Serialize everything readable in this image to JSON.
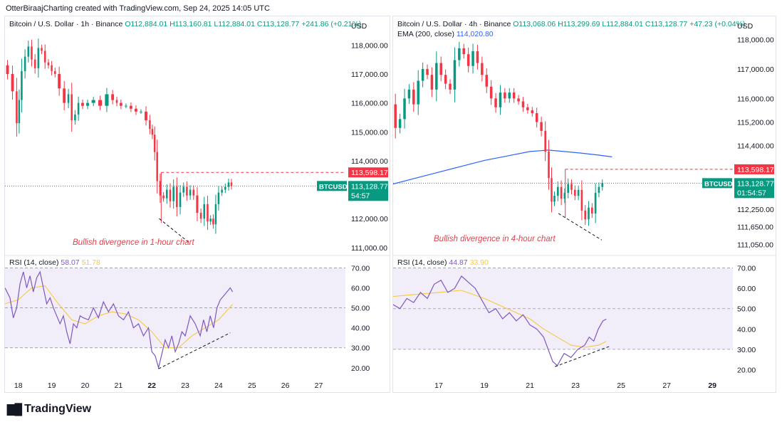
{
  "header": {
    "text": "OtterBiraajCharting created with TradingView.com, Sep 24, 2025 14:05 UTC"
  },
  "footer": {
    "logo_text": "TradingView"
  },
  "colors": {
    "up": "#089981",
    "down": "#f23645",
    "rsi": "#7e57c2",
    "rsi_ma": "#f7c744",
    "ema": "#2962ff",
    "rsi_band": "#7e57c2",
    "divergence": "#e0414e",
    "text": "#131722",
    "axis": "#131722"
  },
  "chart_data": [
    {
      "type": "candlestick",
      "title": "Bitcoin / U.S. Dollar · 1h · Binance",
      "ohlc_label": {
        "o": "O112,884.01",
        "h": "H113,160.81",
        "l": "L112,884.01",
        "c": "C113,128.77",
        "chg": "+241.86 (+0.21%)"
      },
      "currency": "USD",
      "ylim": [
        110750,
        118500
      ],
      "y_ticks": [
        111000,
        112000,
        113000,
        114000,
        115000,
        116000,
        117000,
        118000
      ],
      "y_tick_labels": [
        "111,000.00",
        "112,000.00",
        "113,000.00",
        "114,000.00",
        "115,000.00",
        "116,000.00",
        "117,000.00",
        "118,000.00"
      ],
      "x_ticks": [
        18,
        19,
        20,
        21,
        22,
        23,
        24,
        25,
        26,
        27
      ],
      "x_tick_labels": [
        "18",
        "19",
        "20",
        "21",
        "22",
        "23",
        "24",
        "25",
        "26",
        "27"
      ],
      "x_bold": "22",
      "xlim": [
        17.6,
        27.8
      ],
      "last_price_label": "113,128.77",
      "countdown": "54:57",
      "symbol_tag": "BTCUSD",
      "last_price": 113128.77,
      "resistance": {
        "value": 113598.17,
        "label": "113,598.17",
        "x_start": 22.28
      },
      "support_line": {
        "x1": 22.22,
        "y1": 112000,
        "x2": 23.14,
        "y2": 111150
      },
      "annotation": "Bullish divergence in 1-hour chart",
      "price_path": [
        [
          17.6,
          117300
        ],
        [
          17.75,
          117000
        ],
        [
          17.9,
          116400
        ],
        [
          18.0,
          115300
        ],
        [
          18.05,
          116100
        ],
        [
          18.15,
          117100
        ],
        [
          18.25,
          117600
        ],
        [
          18.35,
          117950
        ],
        [
          18.45,
          117500
        ],
        [
          18.55,
          117200
        ],
        [
          18.65,
          117900
        ],
        [
          18.75,
          117800
        ],
        [
          18.85,
          117400
        ],
        [
          18.95,
          117300
        ],
        [
          19.05,
          117100
        ],
        [
          19.15,
          117000
        ],
        [
          19.3,
          116500
        ],
        [
          19.45,
          116000
        ],
        [
          19.55,
          116300
        ],
        [
          19.65,
          115400
        ],
        [
          19.75,
          115600
        ],
        [
          19.85,
          116000
        ],
        [
          20.0,
          115900
        ],
        [
          20.15,
          116000
        ],
        [
          20.35,
          116100
        ],
        [
          20.55,
          115900
        ],
        [
          20.75,
          116300
        ],
        [
          20.9,
          116100
        ],
        [
          21.0,
          116000
        ],
        [
          21.15,
          115900
        ],
        [
          21.3,
          115900
        ],
        [
          21.45,
          115800
        ],
        [
          21.6,
          115700
        ],
        [
          21.75,
          115700
        ],
        [
          21.9,
          115400
        ],
        [
          21.98,
          115100
        ],
        [
          22.05,
          114900
        ],
        [
          22.12,
          114300
        ],
        [
          22.2,
          113300
        ],
        [
          22.3,
          112800
        ],
        [
          22.4,
          112700
        ],
        [
          22.5,
          113000
        ],
        [
          22.6,
          112600
        ],
        [
          22.7,
          113100
        ],
        [
          22.8,
          112400
        ],
        [
          22.9,
          112900
        ],
        [
          23.0,
          113100
        ],
        [
          23.1,
          112800
        ],
        [
          23.2,
          113000
        ],
        [
          23.3,
          112800
        ],
        [
          23.42,
          112200
        ],
        [
          23.52,
          112000
        ],
        [
          23.62,
          112500
        ],
        [
          23.72,
          111900
        ],
        [
          23.8,
          112000
        ],
        [
          23.88,
          111800
        ],
        [
          23.95,
          112500
        ],
        [
          24.05,
          112900
        ],
        [
          24.15,
          113000
        ],
        [
          24.25,
          113100
        ],
        [
          24.35,
          113250
        ],
        [
          24.42,
          113128
        ]
      ],
      "rsi": {
        "label": "RSI (14, close)",
        "value_label": "58.07",
        "ma_label": "51.78",
        "ylim": [
          16,
          73
        ],
        "band": [
          30,
          70
        ],
        "mid": 50,
        "y_ticks": [
          20,
          30,
          40,
          50,
          60,
          70
        ],
        "y_tick_labels": [
          "20.00",
          "30.00",
          "40.00",
          "50.00",
          "60.00",
          "70.00"
        ],
        "path": [
          [
            17.6,
            60
          ],
          [
            17.75,
            55
          ],
          [
            17.85,
            45
          ],
          [
            17.95,
            50
          ],
          [
            18.05,
            62
          ],
          [
            18.15,
            68
          ],
          [
            18.25,
            60
          ],
          [
            18.35,
            66
          ],
          [
            18.45,
            58
          ],
          [
            18.55,
            65
          ],
          [
            18.65,
            68
          ],
          [
            18.75,
            60
          ],
          [
            18.85,
            52
          ],
          [
            18.95,
            55
          ],
          [
            19.05,
            50
          ],
          [
            19.15,
            46
          ],
          [
            19.25,
            42
          ],
          [
            19.35,
            46
          ],
          [
            19.45,
            38
          ],
          [
            19.55,
            32
          ],
          [
            19.65,
            42
          ],
          [
            19.75,
            40
          ],
          [
            19.85,
            46
          ],
          [
            19.95,
            45
          ],
          [
            20.1,
            44
          ],
          [
            20.25,
            50
          ],
          [
            20.4,
            45
          ],
          [
            20.55,
            53
          ],
          [
            20.7,
            48
          ],
          [
            20.85,
            52
          ],
          [
            21.0,
            46
          ],
          [
            21.15,
            44
          ],
          [
            21.3,
            48
          ],
          [
            21.45,
            40
          ],
          [
            21.6,
            42
          ],
          [
            21.75,
            36
          ],
          [
            21.9,
            40
          ],
          [
            22.0,
            28
          ],
          [
            22.1,
            26
          ],
          [
            22.2,
            20
          ],
          [
            22.3,
            27
          ],
          [
            22.4,
            34
          ],
          [
            22.5,
            30
          ],
          [
            22.6,
            36
          ],
          [
            22.7,
            28
          ],
          [
            22.8,
            32
          ],
          [
            22.9,
            38
          ],
          [
            23.0,
            36
          ],
          [
            23.15,
            46
          ],
          [
            23.3,
            42
          ],
          [
            23.45,
            36
          ],
          [
            23.55,
            44
          ],
          [
            23.65,
            38
          ],
          [
            23.75,
            46
          ],
          [
            23.85,
            40
          ],
          [
            23.95,
            50
          ],
          [
            24.05,
            54
          ],
          [
            24.15,
            56
          ],
          [
            24.25,
            58
          ],
          [
            24.35,
            60
          ],
          [
            24.42,
            58
          ]
        ],
        "ma_path": [
          [
            17.6,
            52
          ],
          [
            18.0,
            54
          ],
          [
            18.4,
            60
          ],
          [
            18.8,
            61
          ],
          [
            19.2,
            52
          ],
          [
            19.6,
            44
          ],
          [
            20.0,
            42
          ],
          [
            20.4,
            46
          ],
          [
            20.8,
            48
          ],
          [
            21.2,
            47
          ],
          [
            21.6,
            44
          ],
          [
            22.0,
            38
          ],
          [
            22.4,
            30
          ],
          [
            22.8,
            30
          ],
          [
            23.2,
            36
          ],
          [
            23.6,
            40
          ],
          [
            24.0,
            44
          ],
          [
            24.42,
            51.78
          ]
        ],
        "divergence_line": {
          "x1": 22.2,
          "y1": 19.5,
          "x2": 24.35,
          "y2": 37.5
        }
      }
    },
    {
      "type": "candlestick",
      "title": "Bitcoin / U.S. Dollar · 4h · Binance",
      "ohlc_label": {
        "o": "O113,068.06",
        "h": "H113,299.69",
        "l": "L112,884.01",
        "c": "C113,128.77",
        "chg": "+47.23 (+0.04%)"
      },
      "ema_label": {
        "name": "EMA (200, close)",
        "value": "114,020.80"
      },
      "currency": "USD",
      "ylim": [
        110700,
        118300
      ],
      "y_ticks": [
        111050,
        111650,
        112250,
        114400,
        115200,
        116000,
        117000,
        118000
      ],
      "y_tick_labels": [
        "111,050.00",
        "111,650.00",
        "112,250.00",
        "114,400.00",
        "115,200.00",
        "116,000.00",
        "117,000.00",
        "118,000.00"
      ],
      "x_ticks": [
        17,
        19,
        21,
        23,
        25,
        27,
        29
      ],
      "x_tick_labels": [
        "17",
        "19",
        "21",
        "23",
        "25",
        "27",
        "29"
      ],
      "x_bold": "29",
      "xlim": [
        15.0,
        29.9
      ],
      "last_price_label": "113,128.77",
      "countdown": "01:54:57",
      "symbol_tag": "BTCUSD",
      "last_price": 113128.77,
      "resistance": {
        "value": 113598.17,
        "label": "113,598.17",
        "x_start": 22.55
      },
      "support_line": {
        "x1": 22.25,
        "y1": 112100,
        "x2": 24.15,
        "y2": 111200
      },
      "annotation": "Bullish divergence in 4-hour chart",
      "price_path": [
        [
          15.0,
          115800
        ],
        [
          15.2,
          115000
        ],
        [
          15.4,
          115300
        ],
        [
          15.6,
          116000
        ],
        [
          15.8,
          116300
        ],
        [
          16.0,
          115800
        ],
        [
          16.2,
          116600
        ],
        [
          16.4,
          117000
        ],
        [
          16.6,
          116800
        ],
        [
          16.8,
          116300
        ],
        [
          17.0,
          117200
        ],
        [
          17.2,
          116800
        ],
        [
          17.4,
          116500
        ],
        [
          17.6,
          116300
        ],
        [
          17.8,
          117300
        ],
        [
          18.0,
          117700
        ],
        [
          18.2,
          117500
        ],
        [
          18.4,
          117100
        ],
        [
          18.6,
          117600
        ],
        [
          18.8,
          117200
        ],
        [
          19.0,
          116800
        ],
        [
          19.2,
          116400
        ],
        [
          19.4,
          116000
        ],
        [
          19.6,
          115700
        ],
        [
          19.8,
          116200
        ],
        [
          20.0,
          116000
        ],
        [
          20.2,
          116200
        ],
        [
          20.4,
          116000
        ],
        [
          20.6,
          115900
        ],
        [
          20.8,
          115700
        ],
        [
          21.0,
          115600
        ],
        [
          21.2,
          115500
        ],
        [
          21.4,
          115200
        ],
        [
          21.6,
          114900
        ],
        [
          21.75,
          114200
        ],
        [
          21.9,
          113300
        ],
        [
          22.0,
          112500
        ],
        [
          22.15,
          112700
        ],
        [
          22.3,
          113000
        ],
        [
          22.45,
          112600
        ],
        [
          22.6,
          112800
        ],
        [
          22.75,
          113100
        ],
        [
          22.9,
          112900
        ],
        [
          23.05,
          112700
        ],
        [
          23.2,
          112900
        ],
        [
          23.35,
          112200
        ],
        [
          23.5,
          111900
        ],
        [
          23.65,
          112300
        ],
        [
          23.8,
          112100
        ],
        [
          23.95,
          112800
        ],
        [
          24.1,
          113000
        ],
        [
          24.25,
          113128
        ]
      ],
      "ema_path": [
        [
          15.0,
          113100
        ],
        [
          16.0,
          113300
        ],
        [
          17.0,
          113500
        ],
        [
          18.0,
          113700
        ],
        [
          19.0,
          113900
        ],
        [
          20.0,
          114050
        ],
        [
          21.0,
          114200
        ],
        [
          21.8,
          114250
        ],
        [
          22.5,
          114200
        ],
        [
          23.2,
          114150
        ],
        [
          24.0,
          114080
        ],
        [
          24.6,
          114020
        ]
      ],
      "rsi": {
        "label": "RSI (14, close)",
        "value_label": "44.87",
        "ma_label": "33.90",
        "ylim": [
          17,
          73
        ],
        "band": [
          30,
          70
        ],
        "mid": 50,
        "y_ticks": [
          20,
          30,
          40,
          50,
          60,
          70
        ],
        "y_tick_labels": [
          "20.00",
          "30.00",
          "40.00",
          "50.00",
          "60.00",
          "70.00"
        ],
        "path": [
          [
            15.0,
            52
          ],
          [
            15.3,
            50
          ],
          [
            15.6,
            55
          ],
          [
            15.9,
            53
          ],
          [
            16.2,
            58
          ],
          [
            16.5,
            55
          ],
          [
            16.8,
            62
          ],
          [
            17.1,
            64
          ],
          [
            17.4,
            58
          ],
          [
            17.7,
            60
          ],
          [
            18.0,
            66
          ],
          [
            18.3,
            63
          ],
          [
            18.6,
            60
          ],
          [
            18.9,
            54
          ],
          [
            19.2,
            48
          ],
          [
            19.5,
            50
          ],
          [
            19.8,
            45
          ],
          [
            20.1,
            48
          ],
          [
            20.4,
            44
          ],
          [
            20.7,
            47
          ],
          [
            21.0,
            42
          ],
          [
            21.3,
            40
          ],
          [
            21.6,
            36
          ],
          [
            21.8,
            30
          ],
          [
            22.0,
            24
          ],
          [
            22.2,
            22
          ],
          [
            22.5,
            28
          ],
          [
            22.8,
            26
          ],
          [
            23.1,
            30
          ],
          [
            23.4,
            32
          ],
          [
            23.6,
            36
          ],
          [
            23.8,
            34
          ],
          [
            24.0,
            40
          ],
          [
            24.2,
            44
          ],
          [
            24.35,
            44.87
          ]
        ],
        "ma_path": [
          [
            15.0,
            56
          ],
          [
            16.0,
            57
          ],
          [
            17.0,
            58
          ],
          [
            18.0,
            59
          ],
          [
            19.0,
            55
          ],
          [
            20.0,
            50
          ],
          [
            21.0,
            45
          ],
          [
            21.6,
            40
          ],
          [
            22.2,
            36
          ],
          [
            22.8,
            32
          ],
          [
            23.4,
            31
          ],
          [
            24.0,
            32
          ],
          [
            24.35,
            33.9
          ]
        ],
        "divergence_line": {
          "x1": 22.1,
          "y1": 21.5,
          "x2": 24.5,
          "y2": 31.5
        }
      }
    }
  ]
}
